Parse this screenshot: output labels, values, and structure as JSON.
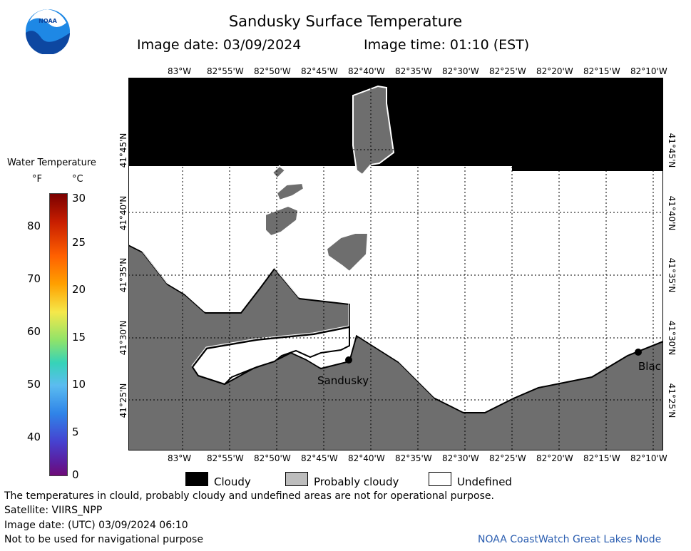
{
  "header": {
    "title": "Sandusky Surface Temperature",
    "image_date": "Image date: 03/09/2024",
    "image_time": "Image time: 01:10 (EST)"
  },
  "logo": {
    "text": "NOAA"
  },
  "scale": {
    "title": "Water Temperature",
    "unit_f": "°F",
    "unit_c": "°C",
    "f_ticks": [
      "80",
      "70",
      "60",
      "50",
      "40"
    ],
    "c_ticks": [
      "30",
      "25",
      "20",
      "15",
      "10",
      "5",
      "0"
    ]
  },
  "map": {
    "lon_labels": [
      "83°W",
      "82°55'W",
      "82°50'W",
      "82°45'W",
      "82°40'W",
      "82°35'W",
      "82°30'W",
      "82°25'W",
      "82°20'W",
      "82°15'W",
      "82°10'W"
    ],
    "lat_labels": [
      "41°45'N",
      "41°40'N",
      "41°35'N",
      "41°30'N",
      "41°25'N"
    ],
    "cities": [
      {
        "name": "Sandusky"
      },
      {
        "name": "Blac"
      }
    ],
    "colors": {
      "cloudy": "#000000",
      "probably_cloudy": "#6e6e6e",
      "land": "#6e6e6e",
      "undefined": "#ffffff"
    }
  },
  "legend": {
    "cloudy": "Cloudy",
    "probably_cloudy": "Probably cloudy",
    "undefined": "Undefined"
  },
  "footer": {
    "disclaimer": "The temperatures in clould, probably cloudy and undefined areas are not for operational purpose.",
    "satellite": "Satellite: VIIRS_NPP",
    "utc_date": "Image date: (UTC) 03/09/2024   06:10",
    "nav": "Not to be used for navigational purpose",
    "credit": "NOAA CoastWatch Great Lakes Node"
  }
}
